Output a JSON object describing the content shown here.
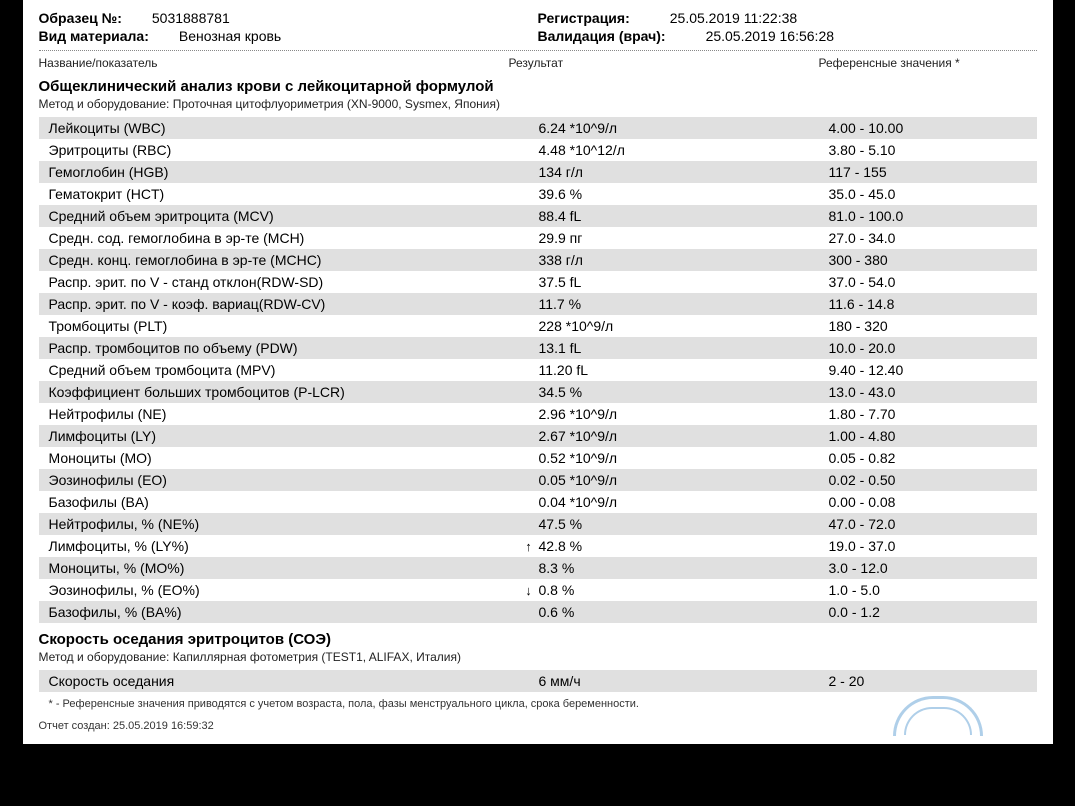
{
  "header": {
    "sample_label": "Образец №:",
    "sample_value": "5031888781",
    "material_label": "Вид материала:",
    "material_value": "Венозная кровь",
    "registration_label": "Регистрация:",
    "registration_value": "25.05.2019  11:22:38",
    "validation_label": "Валидация (врач):",
    "validation_value": "25.05.2019  16:56:28"
  },
  "columns": {
    "name": "Название/показатель",
    "result": "Результат",
    "reference": "Референсные значения *"
  },
  "section1": {
    "title": "Общеклинический анализ крови с лейкоцитарной формулой",
    "method_label": "Метод и оборудование:",
    "method_value": "Проточная цитофлуориметрия (XN-9000, Sysmex, Япония)",
    "rows": [
      {
        "name": "Лейкоциты (WBC)",
        "flag": "",
        "result": "6.24 *10^9/л",
        "ref": "4.00 - 10.00"
      },
      {
        "name": "Эритроциты (RBC)",
        "flag": "",
        "result": "4.48 *10^12/л",
        "ref": "3.80 - 5.10"
      },
      {
        "name": "Гемоглобин (HGB)",
        "flag": "",
        "result": "134 г/л",
        "ref": "117 - 155"
      },
      {
        "name": "Гематокрит (HCT)",
        "flag": "",
        "result": "39.6 %",
        "ref": "35.0 - 45.0"
      },
      {
        "name": "Средний объем эритроцита (MCV)",
        "flag": "",
        "result": "88.4 fL",
        "ref": "81.0 - 100.0"
      },
      {
        "name": "Средн. сод. гемоглобина в эр-те (MCH)",
        "flag": "",
        "result": "29.9 пг",
        "ref": "27.0 - 34.0"
      },
      {
        "name": "Средн. конц. гемоглобина в эр-те (MCHC)",
        "flag": "",
        "result": "338 г/л",
        "ref": "300 - 380"
      },
      {
        "name": "Распр. эрит. по V - станд отклон(RDW-SD)",
        "flag": "",
        "result": "37.5 fL",
        "ref": "37.0 - 54.0"
      },
      {
        "name": "Распр. эрит. по V - коэф. вариац(RDW-CV)",
        "flag": "",
        "result": "11.7 %",
        "ref": "11.6 - 14.8"
      },
      {
        "name": "Тромбоциты (PLT)",
        "flag": "",
        "result": "228 *10^9/л",
        "ref": "180 - 320"
      },
      {
        "name": "Распр. тромбоцитов по объему (PDW)",
        "flag": "",
        "result": "13.1 fL",
        "ref": "10.0 - 20.0"
      },
      {
        "name": "Средний объем тромбоцита (MPV)",
        "flag": "",
        "result": "11.20 fL",
        "ref": "9.40 - 12.40"
      },
      {
        "name": "Коэффициент больших тромбоцитов (P-LCR)",
        "flag": "",
        "result": "34.5 %",
        "ref": "13.0 - 43.0"
      },
      {
        "name": "Нейтрофилы (NE)",
        "flag": "",
        "result": "2.96 *10^9/л",
        "ref": "1.80 - 7.70"
      },
      {
        "name": "Лимфоциты (LY)",
        "flag": "",
        "result": "2.67 *10^9/л",
        "ref": "1.00 - 4.80"
      },
      {
        "name": "Моноциты (MO)",
        "flag": "",
        "result": "0.52 *10^9/л",
        "ref": "0.05 - 0.82"
      },
      {
        "name": "Эозинофилы (EO)",
        "flag": "",
        "result": "0.05 *10^9/л",
        "ref": "0.02 - 0.50"
      },
      {
        "name": "Базофилы (BA)",
        "flag": "",
        "result": "0.04 *10^9/л",
        "ref": "0.00 - 0.08"
      },
      {
        "name": "Нейтрофилы, % (NE%)",
        "flag": "",
        "result": "47.5 %",
        "ref": "47.0 - 72.0"
      },
      {
        "name": "Лимфоциты, % (LY%)",
        "flag": "↑",
        "result": "42.8 %",
        "ref": "19.0 - 37.0"
      },
      {
        "name": "Моноциты, % (MO%)",
        "flag": "",
        "result": "8.3 %",
        "ref": "3.0 - 12.0"
      },
      {
        "name": "Эозинофилы, % (EO%)",
        "flag": "↓",
        "result": "0.8 %",
        "ref": "1.0 - 5.0"
      },
      {
        "name": "Базофилы, % (BA%)",
        "flag": "",
        "result": "0.6 %",
        "ref": "0.0 - 1.2"
      }
    ]
  },
  "section2": {
    "title": "Скорость оседания эритроцитов (СОЭ)",
    "method_label": "Метод и оборудование:",
    "method_value": "Капиллярная фотометрия (TEST1, ALIFAX, Италия)",
    "rows": [
      {
        "name": "Скорость оседания",
        "flag": "",
        "result": "6 мм/ч",
        "ref": "2 - 20"
      }
    ]
  },
  "footnote": "* - Референсные значения приводятся с учетом возраста, пола, фазы менструального цикла, срока беременности.",
  "report_generated_label": "Отчет создан:",
  "report_generated_value": "25.05.2019 16:59:32",
  "colors": {
    "row_stripe": "#e0e0e0",
    "background": "#ffffff",
    "text": "#000000",
    "stamp": "#6fa8d8"
  }
}
